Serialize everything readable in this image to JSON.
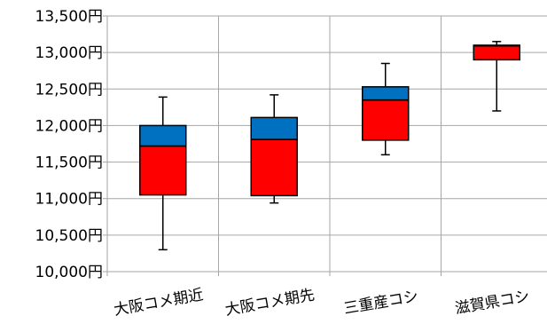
{
  "chart_data": {
    "type": "box",
    "title": "",
    "xlabel": "",
    "ylabel": "",
    "ylim": [
      10000,
      13500
    ],
    "y_tick_step": 500,
    "y_tick_suffix": "円",
    "grid": true,
    "categories": [
      "大阪コメ期近",
      "大阪コメ期先",
      "三重産コシ",
      "滋賀県コシ"
    ],
    "boxes": [
      {
        "min": 10300,
        "q1": 11050,
        "median": 11720,
        "q3": 12000,
        "max": 12390
      },
      {
        "min": 10940,
        "q1": 11040,
        "median": 11810,
        "q3": 12110,
        "max": 12420
      },
      {
        "min": 11600,
        "q1": 11800,
        "median": 12350,
        "q3": 12530,
        "max": 12850
      },
      {
        "min": 12200,
        "q1": 12900,
        "median": 13090,
        "q3": 13100,
        "max": 13150
      }
    ],
    "colors": {
      "lower_box": "#ff0000",
      "upper_box": "#0070c0",
      "grid": "#a6a6a6",
      "outline": "#000000"
    }
  }
}
